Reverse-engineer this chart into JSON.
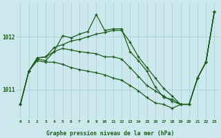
{
  "background_color": "#cce8ec",
  "grid_color": "#aad4d8",
  "line_color": "#1a5c1a",
  "title": "Graphe pression niveau de la mer (hPa)",
  "xlim": [
    -0.5,
    23.5
  ],
  "ylim": [
    1010.45,
    1012.65
  ],
  "yticks": [
    1011,
    1012
  ],
  "xticks": [
    0,
    1,
    2,
    3,
    4,
    5,
    6,
    7,
    8,
    9,
    10,
    11,
    12,
    13,
    14,
    15,
    16,
    17,
    18,
    19,
    20,
    21,
    22,
    23
  ],
  "series": [
    [
      1010.72,
      1011.35,
      1011.6,
      1011.62,
      1011.72,
      1012.02,
      1011.98,
      1012.05,
      1012.1,
      1012.42,
      1012.12,
      1012.15,
      1012.15,
      1011.72,
      1011.55,
      1011.35,
      1011.05,
      1010.85,
      1010.82,
      1010.72,
      1010.72,
      1011.22,
      1011.52,
      1012.48
    ],
    [
      1010.72,
      1011.35,
      1011.6,
      1011.62,
      1011.8,
      1011.85,
      1011.92,
      1011.95,
      1012.0,
      1012.05,
      1012.08,
      1012.12,
      1012.12,
      1011.9,
      1011.62,
      1011.42,
      1011.22,
      1011.02,
      1010.88,
      1010.72,
      1010.72,
      1011.22,
      1011.52,
      1012.48
    ],
    [
      1010.72,
      1011.35,
      1011.58,
      1011.55,
      1011.72,
      1011.78,
      1011.75,
      1011.72,
      1011.7,
      1011.68,
      1011.62,
      1011.62,
      1011.58,
      1011.42,
      1011.25,
      1011.08,
      1010.98,
      1010.88,
      1010.78,
      1010.72,
      1010.72,
      1011.22,
      1011.52,
      1012.48
    ],
    [
      1010.72,
      1011.35,
      1011.55,
      1011.52,
      1011.52,
      1011.48,
      1011.42,
      1011.38,
      1011.35,
      1011.32,
      1011.28,
      1011.22,
      1011.18,
      1011.08,
      1010.98,
      1010.85,
      1010.75,
      1010.72,
      1010.65,
      1010.72,
      1010.72,
      1011.22,
      1011.52,
      1012.48
    ]
  ]
}
